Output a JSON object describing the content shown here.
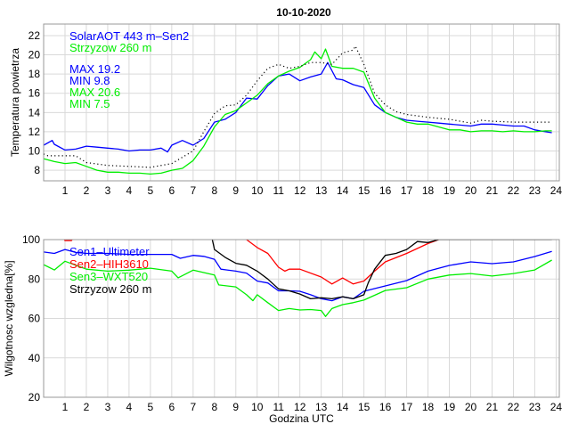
{
  "title": "10-10-2020",
  "chart_data": [
    {
      "type": "line",
      "title": "10-10-2020",
      "xlabel": "",
      "ylabel": "Temperatura powietrza",
      "xlim": [
        0,
        24.15
      ],
      "ylim": [
        6.9,
        23.2
      ],
      "xticks": [
        1,
        2,
        3,
        4,
        5,
        6,
        7,
        8,
        9,
        10,
        11,
        12,
        13,
        14,
        15,
        16,
        17,
        18,
        19,
        20,
        21,
        22,
        23,
        24
      ],
      "yticks": [
        8,
        10,
        12,
        14,
        16,
        18,
        20,
        22
      ],
      "grid": true,
      "legend_placement": "top-left",
      "legend": [
        {
          "text": "SolarAOT 443 m–Sen2",
          "color": "#0000ff"
        },
        {
          "text": "Strzyzow 260 m",
          "color": "#00ee00"
        }
      ],
      "annotations": [
        {
          "text": "MAX 19.2",
          "color": "#0000ff"
        },
        {
          "text": "MIN 9.8",
          "color": "#0000ff"
        },
        {
          "text": "MAX 20.6",
          "color": "#00ee00"
        },
        {
          "text": "MIN 7.5",
          "color": "#00ee00"
        }
      ],
      "series": [
        {
          "name": "SolarAOT 443 m-Sen2",
          "color": "#0000ff",
          "style": "solid",
          "x": [
            0,
            0.4,
            0.5,
            1,
            1.5,
            2,
            2.5,
            3,
            3.5,
            4,
            4.5,
            5,
            5.5,
            5.8,
            6,
            6.5,
            7,
            7.5,
            8,
            8.5,
            9,
            9.5,
            10,
            10.5,
            11,
            11.5,
            12,
            12.5,
            13,
            13.3,
            13.7,
            14,
            14.5,
            15,
            15.5,
            16,
            16.5,
            17,
            17.5,
            18,
            18.5,
            19,
            19.5,
            20,
            20.5,
            21,
            21.5,
            22,
            22.5,
            23,
            23.5,
            23.8
          ],
          "y": [
            10.6,
            11.1,
            10.7,
            10.1,
            10.2,
            10.5,
            10.4,
            10.3,
            10.2,
            10.0,
            10.1,
            10.1,
            10.3,
            9.9,
            10.6,
            11.1,
            10.6,
            11.3,
            13.0,
            13.3,
            14.0,
            15.5,
            15.4,
            16.8,
            17.8,
            18.0,
            17.3,
            17.7,
            18.0,
            19.2,
            17.5,
            17.4,
            16.9,
            16.6,
            14.8,
            14.0,
            13.5,
            13.2,
            13.1,
            13.0,
            12.9,
            12.8,
            12.7,
            12.6,
            12.8,
            12.8,
            12.7,
            12.6,
            12.6,
            12.2,
            12.0,
            11.9
          ]
        },
        {
          "name": "Strzyzow 260 m",
          "color": "#00ee00",
          "style": "solid",
          "x": [
            0,
            0.5,
            1,
            1.5,
            2,
            2.5,
            3,
            3.5,
            4,
            4.5,
            5,
            5.5,
            6,
            6.5,
            7,
            7.5,
            8,
            8.5,
            9,
            9.5,
            10,
            10.5,
            11,
            11.5,
            12,
            12.5,
            12.7,
            13,
            13.2,
            13.5,
            14,
            14.5,
            15,
            15.5,
            16,
            16.5,
            17,
            17.5,
            18,
            18.5,
            19,
            19.5,
            20,
            20.5,
            21,
            21.5,
            22,
            22.5,
            23,
            23.5,
            23.8
          ],
          "y": [
            9.2,
            8.9,
            8.7,
            8.8,
            8.4,
            8.0,
            7.8,
            7.8,
            7.7,
            7.7,
            7.6,
            7.7,
            8.0,
            8.2,
            9.0,
            10.5,
            12.5,
            13.8,
            14.2,
            15.0,
            15.8,
            17.0,
            17.8,
            18.3,
            18.7,
            19.5,
            20.3,
            19.6,
            20.6,
            18.8,
            18.6,
            18.6,
            18.2,
            15.5,
            14.0,
            13.5,
            13.0,
            12.8,
            12.8,
            12.5,
            12.2,
            12.2,
            12.0,
            12.1,
            12.1,
            12.0,
            12.1,
            12.0,
            12.0,
            12.1,
            12.1
          ]
        },
        {
          "name": "reference",
          "color": "#000000",
          "style": "dotted",
          "x": [
            0,
            0.2,
            1.5,
            2,
            3,
            4,
            5,
            6,
            7,
            7.5,
            8,
            8.5,
            9,
            9.5,
            10,
            10.5,
            11,
            11.5,
            12,
            12.5,
            13,
            13.5,
            14,
            14.5,
            14.6,
            15,
            15.5,
            16,
            16.5,
            17,
            18,
            19,
            20,
            20.5,
            21,
            22,
            23,
            23.7
          ],
          "y": [
            9.7,
            9.5,
            9.5,
            8.8,
            8.5,
            8.4,
            8.3,
            8.7,
            10.0,
            12.0,
            13.9,
            14.7,
            14.8,
            15.8,
            17.3,
            18.6,
            19.0,
            18.6,
            18.8,
            19.2,
            19.2,
            19.0,
            20.2,
            20.5,
            20.9,
            19.0,
            16.0,
            14.8,
            14.1,
            13.8,
            13.5,
            13.3,
            12.9,
            13.2,
            13.1,
            13.0,
            13.0,
            13.0
          ]
        }
      ]
    },
    {
      "type": "line",
      "title": "",
      "xlabel": "Godzina UTC",
      "ylabel": "Wilgotnosc wzgledna[%]",
      "xlim": [
        0,
        24.15
      ],
      "ylim": [
        20,
        100
      ],
      "xticks": [
        1,
        2,
        3,
        4,
        5,
        6,
        7,
        8,
        9,
        10,
        11,
        12,
        13,
        14,
        15,
        16,
        17,
        18,
        19,
        20,
        21,
        22,
        23,
        24
      ],
      "yticks": [
        20,
        40,
        60,
        80,
        100
      ],
      "grid": true,
      "legend_placement": "top-left",
      "legend": [
        {
          "text": "Sen1–Ultimeter",
          "color": "#0000ff"
        },
        {
          "text": "Sen2–HIH3610",
          "color": "#ff0000"
        },
        {
          "text": "Sen3–WXT520",
          "color": "#00ee00"
        },
        {
          "text": "Strzyzow 260 m",
          "color": "#000000"
        }
      ],
      "series": [
        {
          "name": "Sen1-Ultimeter",
          "color": "#0000ff",
          "x": [
            0,
            0.5,
            1,
            1.5,
            2,
            3,
            4,
            5,
            6,
            6.4,
            7,
            7.5,
            8,
            8.3,
            9,
            9.5,
            10,
            10.5,
            11,
            11.5,
            12,
            12.5,
            13,
            13.5,
            14,
            14.5,
            15,
            16,
            17,
            18,
            19,
            20,
            21,
            22,
            23,
            23.8
          ],
          "y": [
            93.7,
            93,
            95,
            93.5,
            93,
            93,
            92.5,
            92.5,
            92.5,
            90.5,
            92,
            91.5,
            90,
            85,
            84,
            83,
            79,
            78,
            74,
            74,
            73.8,
            72,
            70,
            69,
            71,
            70,
            73.8,
            76.5,
            79.2,
            84,
            86.9,
            88.7,
            87.8,
            88.7,
            91.4,
            94
          ]
        },
        {
          "name": "Sen2-HIH3610",
          "color": "#ff0000",
          "x": [
            0.9,
            1.0,
            1.3,
            1.4,
            9.4,
            9.5,
            10,
            10.5,
            11,
            11.3,
            11.5,
            12,
            13,
            13.5,
            14,
            14.5,
            15,
            15.5,
            16,
            17,
            18,
            18.5
          ],
          "y": [
            101,
            99.5,
            99.5,
            101,
            101,
            100,
            96,
            93,
            86,
            84,
            85,
            85,
            81,
            77.5,
            80.5,
            77.5,
            79,
            84,
            88.7,
            93,
            98,
            100
          ]
        },
        {
          "name": "Sen3-WXT520",
          "color": "#00ee00",
          "x": [
            0,
            0.5,
            1,
            2,
            3,
            4,
            5,
            6,
            6.3,
            7,
            8,
            8.2,
            9,
            9.5,
            9.8,
            10,
            10.5,
            11,
            11.5,
            12,
            12.5,
            13,
            13.2,
            13.5,
            14,
            14.5,
            15,
            16,
            17,
            18,
            19,
            20,
            21,
            22,
            23,
            23.8
          ],
          "y": [
            87.3,
            84.6,
            89,
            85,
            84,
            84.5,
            85.5,
            84,
            80.6,
            84.5,
            82,
            77,
            76,
            72,
            69,
            72,
            68,
            64,
            65,
            64.3,
            64.5,
            64,
            61,
            65,
            67,
            68,
            69.3,
            74.2,
            75.6,
            80,
            82,
            82.8,
            81.5,
            82.8,
            84.6,
            89.6
          ]
        },
        {
          "name": "Strzyzow 260 m",
          "color": "#000000",
          "x": [
            7.9,
            8,
            8.5,
            9,
            9.5,
            10,
            10.5,
            11,
            11.5,
            12,
            12.5,
            13,
            13.5,
            14,
            14.5,
            15,
            15.2,
            15.5,
            16,
            16.5,
            17,
            17.5,
            18,
            18.5,
            19,
            20,
            21,
            22,
            23,
            23.8
          ],
          "y": [
            100,
            95,
            91,
            88,
            87,
            84,
            80,
            75,
            74,
            72.4,
            70,
            70.5,
            70,
            71,
            70,
            72,
            78,
            85,
            92,
            93,
            95,
            99,
            98.5,
            100,
            100,
            100,
            100,
            100,
            100,
            100
          ]
        }
      ]
    }
  ]
}
